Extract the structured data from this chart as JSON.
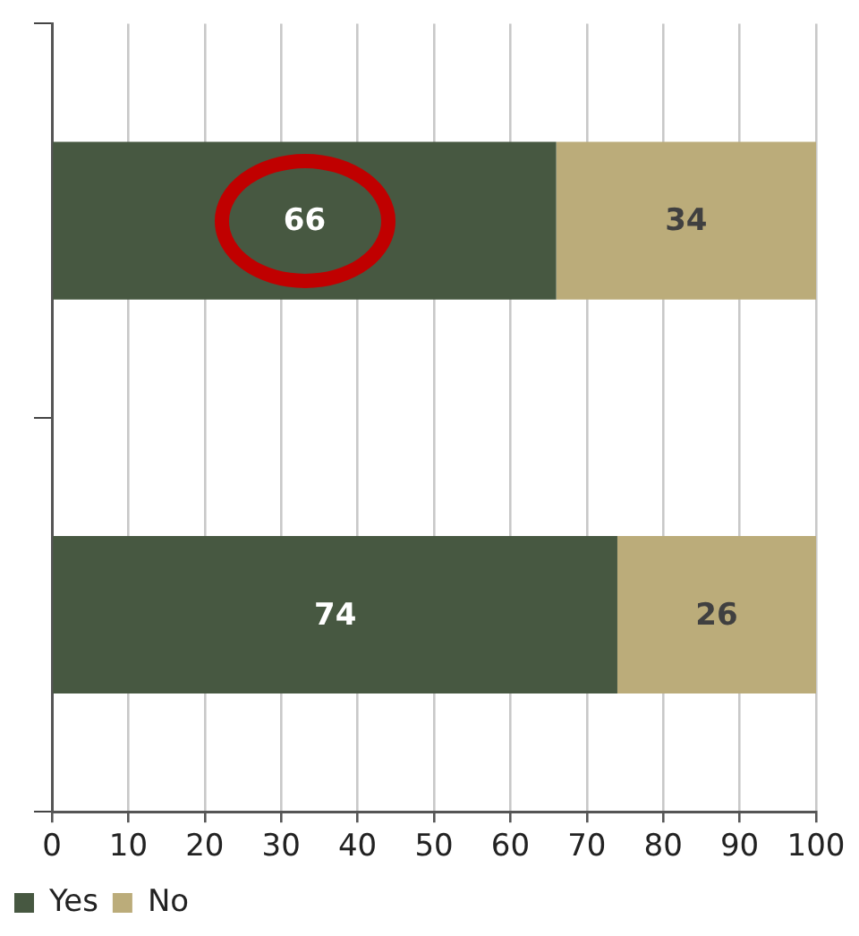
{
  "chart_data": {
    "type": "bar",
    "orientation": "horizontal",
    "stacked": true,
    "categories": [
      null,
      null
    ],
    "series": [
      {
        "name": "Yes",
        "color": "#475841",
        "values": [
          66,
          74
        ]
      },
      {
        "name": "No",
        "color": "#bbac7a",
        "values": [
          34,
          26
        ]
      }
    ],
    "xlim": [
      0,
      100
    ],
    "xticks": [
      0,
      10,
      20,
      30,
      40,
      50,
      60,
      70,
      80,
      90,
      100
    ],
    "grid": "x",
    "legend": "bottom left",
    "data_labels": true
  }
}
